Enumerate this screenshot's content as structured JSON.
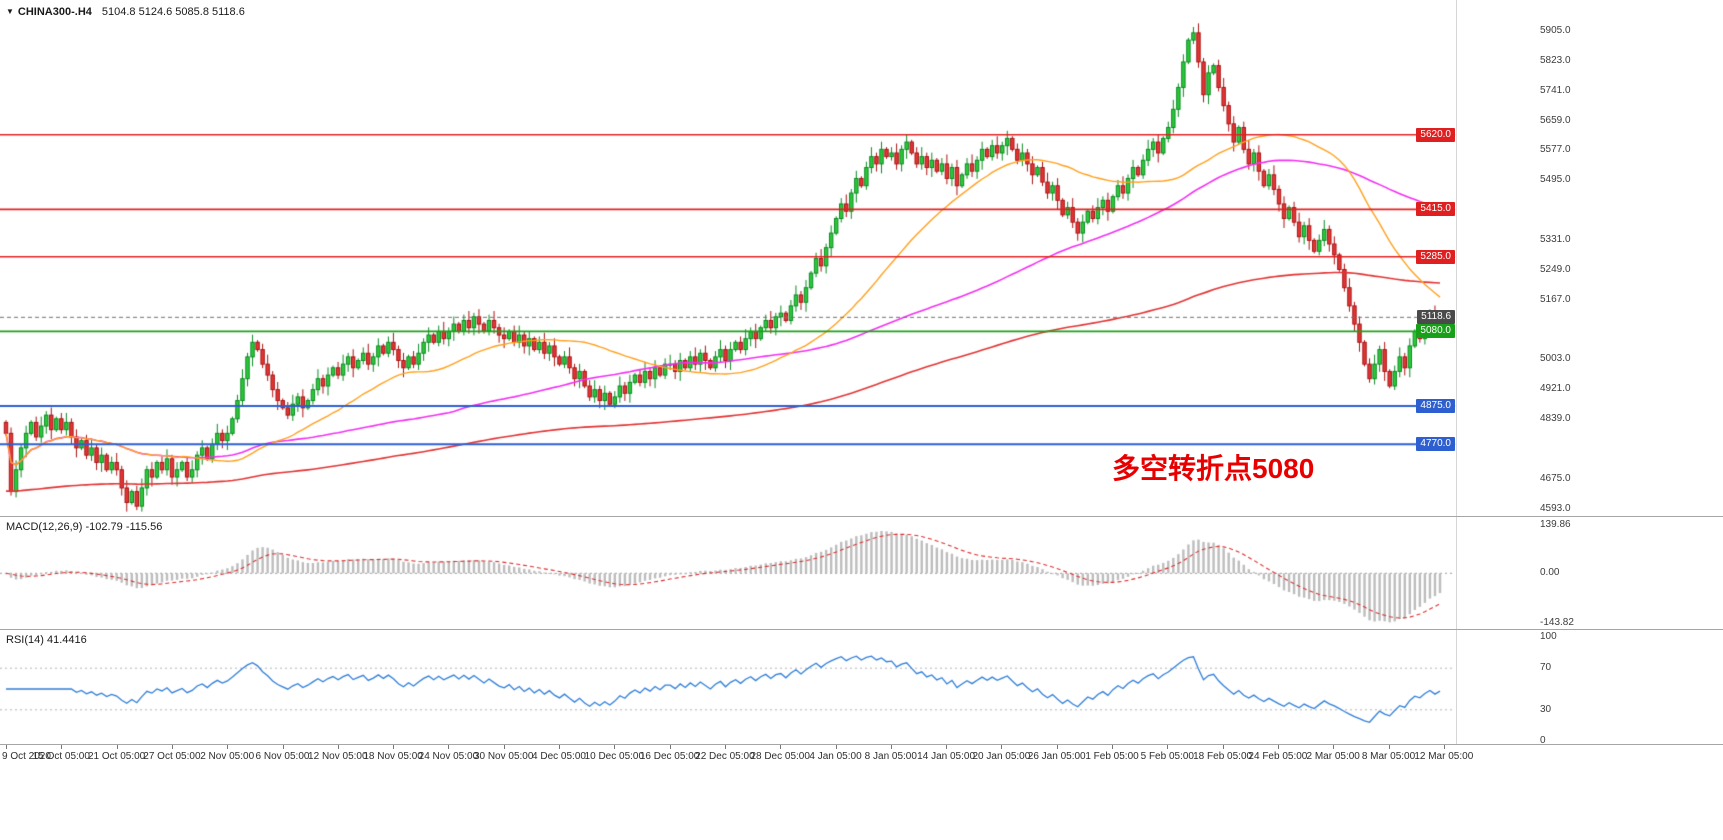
{
  "header": {
    "dropdown_icon": "▼",
    "symbol": "CHINA300-.H4",
    "ohlc": "5104.8 5124.6 5085.8 5118.6"
  },
  "annotation": {
    "text": "多空转折点5080",
    "color": "#e80000"
  },
  "price_axis": {
    "ticks": [
      5905,
      5823,
      5741,
      5659,
      5577,
      5495,
      5331,
      5249,
      5167,
      5003,
      4921,
      4839,
      4675,
      4593
    ]
  },
  "price_tags": [
    {
      "text": "5620.0",
      "level": 5620,
      "bg": "#e02020"
    },
    {
      "text": "5415.0",
      "level": 5415,
      "bg": "#e02020"
    },
    {
      "text": "5285.0",
      "level": 5285,
      "bg": "#e02020"
    },
    {
      "text": "5118.6",
      "level": 5118.6,
      "bg": "#4a4a4a"
    },
    {
      "text": "5080.0",
      "level": 5080,
      "bg": "#18a018"
    },
    {
      "text": "4875.0",
      "level": 4875,
      "bg": "#2e5fd0"
    },
    {
      "text": "4770.0",
      "level": 4770,
      "bg": "#2e5fd0"
    }
  ],
  "time_axis": {
    "labels": [
      "9 Oct 2020",
      "15 Oct 05:00",
      "21 Oct 05:00",
      "27 Oct 05:00",
      "2 Nov 05:00",
      "6 Nov 05:00",
      "12 Nov 05:00",
      "18 Nov 05:00",
      "24 Nov 05:00",
      "30 Nov 05:00",
      "4 Dec 05:00",
      "10 Dec 05:00",
      "16 Dec 05:00",
      "22 Dec 05:00",
      "28 Dec 05:00",
      "4 Jan 05:00",
      "8 Jan 05:00",
      "14 Jan 05:00",
      "20 Jan 05:00",
      "26 Jan 05:00",
      "1 Feb 05:00",
      "5 Feb 05:00",
      "18 Feb 05:00",
      "24 Feb 05:00",
      "2 Mar 05:00",
      "8 Mar 05:00",
      "12 Mar 05:00"
    ]
  },
  "panes": {
    "macd": {
      "label": "MACD(12,26,9) -102.79 -115.56",
      "tick_texts": [
        "139.86",
        "0.00",
        "-143.82"
      ],
      "tick_values": [
        139.86,
        0,
        -143.82
      ]
    },
    "rsi": {
      "label": "RSI(14) 41.4416",
      "tick_texts": [
        "100",
        "70",
        "30",
        "0"
      ],
      "tick_values": [
        100,
        70,
        30,
        0
      ]
    }
  },
  "colors": {
    "up": "#2bc93a",
    "up_border": "#0c8a22",
    "down": "#e33636",
    "down_border": "#a81414",
    "ma_fast": "#ffa01e",
    "ma_mid": "#f230f2",
    "ma_slow": "#e23333",
    "macd_hist": "#bdbdbd",
    "macd_signal": "#d93030",
    "rsi": "#2f7ed8",
    "axis_text": "#3c3c3c"
  },
  "chart_data": [
    {
      "type": "candlestick",
      "symbol": "CHINA300-.H4",
      "timeframe": "H4",
      "x_start": "9 Oct 2020",
      "x_end": "12 Mar 05:00",
      "price_range": [
        4593,
        5905
      ],
      "open_first": 4830,
      "closes": [
        4800,
        4640,
        4700,
        4760,
        4800,
        4830,
        4790,
        4820,
        4850,
        4810,
        4840,
        4810,
        4830,
        4790,
        4760,
        4780,
        4740,
        4760,
        4720,
        4740,
        4700,
        4720,
        4700,
        4650,
        4610,
        4640,
        4600,
        4650,
        4700,
        4680,
        4720,
        4700,
        4730,
        4680,
        4700,
        4720,
        4680,
        4700,
        4740,
        4760,
        4730,
        4770,
        4800,
        4780,
        4800,
        4840,
        4890,
        4950,
        5010,
        5050,
        5030,
        4990,
        4960,
        4920,
        4890,
        4870,
        4850,
        4880,
        4900,
        4870,
        4890,
        4920,
        4950,
        4930,
        4960,
        4980,
        4960,
        4990,
        5010,
        4980,
        5000,
        5020,
        4990,
        5010,
        5040,
        5020,
        5050,
        5030,
        5000,
        4980,
        5010,
        4990,
        5020,
        5050,
        5070,
        5050,
        5080,
        5060,
        5080,
        5100,
        5080,
        5110,
        5090,
        5120,
        5100,
        5080,
        5110,
        5090,
        5070,
        5060,
        5080,
        5050,
        5070,
        5040,
        5060,
        5030,
        5050,
        5020,
        5040,
        5010,
        4990,
        5010,
        4980,
        4950,
        4970,
        4930,
        4900,
        4920,
        4890,
        4910,
        4880,
        4900,
        4930,
        4910,
        4940,
        4960,
        4940,
        4970,
        4950,
        4980,
        4960,
        4990,
        4990,
        4970,
        5000,
        4980,
        5010,
        4990,
        5020,
        5000,
        4980,
        5010,
        5030,
        5000,
        5030,
        5050,
        5030,
        5060,
        5080,
        5060,
        5090,
        5110,
        5090,
        5120,
        5130,
        5110,
        5150,
        5180,
        5160,
        5200,
        5240,
        5280,
        5260,
        5310,
        5350,
        5390,
        5430,
        5410,
        5460,
        5500,
        5480,
        5530,
        5560,
        5540,
        5580,
        5560,
        5570,
        5540,
        5580,
        5600,
        5570,
        5540,
        5560,
        5530,
        5550,
        5520,
        5540,
        5500,
        5530,
        5480,
        5510,
        5540,
        5520,
        5550,
        5580,
        5560,
        5590,
        5570,
        5590,
        5610,
        5580,
        5550,
        5570,
        5540,
        5510,
        5530,
        5490,
        5460,
        5480,
        5440,
        5400,
        5420,
        5380,
        5350,
        5380,
        5410,
        5390,
        5420,
        5440,
        5410,
        5450,
        5480,
        5460,
        5500,
        5530,
        5510,
        5550,
        5580,
        5600,
        5570,
        5610,
        5640,
        5690,
        5750,
        5820,
        5880,
        5900,
        5820,
        5730,
        5790,
        5810,
        5750,
        5700,
        5650,
        5600,
        5640,
        5580,
        5540,
        5570,
        5520,
        5480,
        5510,
        5470,
        5430,
        5390,
        5420,
        5380,
        5340,
        5370,
        5330,
        5300,
        5330,
        5360,
        5320,
        5290,
        5250,
        5200,
        5150,
        5100,
        5050,
        4990,
        4950,
        4990,
        5030,
        4970,
        4930,
        4970,
        5010,
        4980,
        5040,
        5080,
        5060,
        5100,
        5130,
        5090,
        5118.6
      ],
      "moving_averages": [
        {
          "name": "fast",
          "period": 34,
          "color": "#ffa01e"
        },
        {
          "name": "medium",
          "period": 89,
          "color": "#f230f2"
        },
        {
          "name": "slow",
          "period": 250,
          "color": "#e23333",
          "seed": 4640
        }
      ],
      "hlines": [
        {
          "level": 5620,
          "color": "#e02020",
          "w": 1.6
        },
        {
          "level": 5415,
          "color": "#e02020",
          "w": 1.6
        },
        {
          "level": 5285,
          "color": "#e02020",
          "w": 1.6
        },
        {
          "level": 5118.6,
          "color": "#6f6f6f",
          "w": 1,
          "dash": true
        },
        {
          "level": 5080,
          "color": "#18a018",
          "w": 1.8
        },
        {
          "level": 4875,
          "color": "#2e5fd0",
          "w": 1.8
        },
        {
          "level": 4770,
          "color": "#2e5fd0",
          "w": 1.8
        }
      ]
    },
    {
      "type": "macd",
      "params": "12,26,9",
      "current_macd": -102.79,
      "current_signal": -115.56,
      "y_ticks": [
        139.86,
        0,
        -143.82
      ]
    },
    {
      "type": "rsi",
      "period": 14,
      "current": 41.4416,
      "y_ticks": [
        100,
        70,
        30,
        0
      ],
      "levels": [
        70,
        30
      ]
    }
  ]
}
